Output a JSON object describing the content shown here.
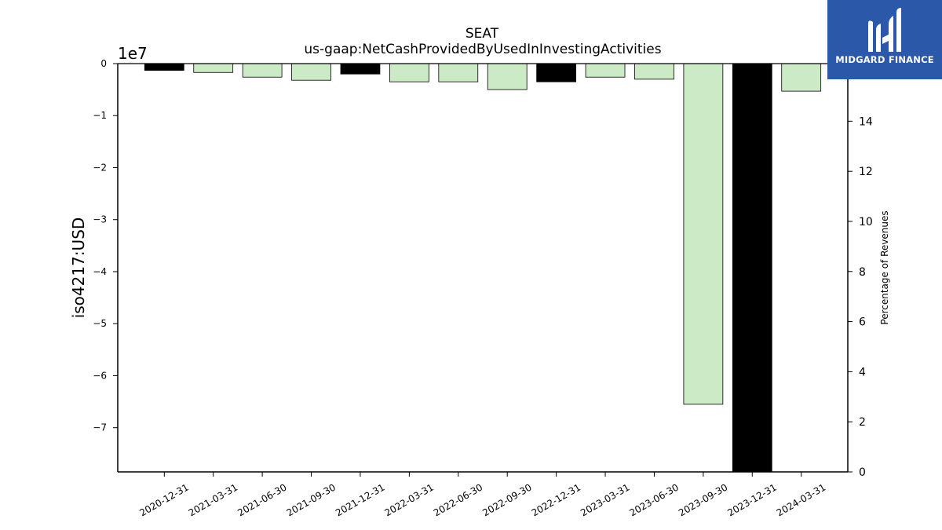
{
  "chart_data": {
    "type": "bar",
    "title": "SEAT",
    "subtitle": "us-gaap:NetCashProvidedByUsedInInvestingActivities",
    "ylabel": "iso4217:USD",
    "y_offset_label": "1e7",
    "y2label": "Percentage of Revenues",
    "categories": [
      "2020-12-31",
      "2021-03-31",
      "2021-06-30",
      "2021-09-30",
      "2021-12-31",
      "2022-03-31",
      "2022-06-30",
      "2022-09-30",
      "2022-12-31",
      "2023-03-31",
      "2023-06-30",
      "2023-09-30",
      "2023-12-31",
      "2024-03-31"
    ],
    "values": [
      -1300000,
      -1700000,
      -2600000,
      -3200000,
      -2000000,
      -3500000,
      -3500000,
      -5000000,
      -3500000,
      -2600000,
      -3000000,
      -65500000,
      -78500000,
      -5300000
    ],
    "bar_colors": [
      "#000000",
      "#cdeac6",
      "#cdeac6",
      "#cdeac6",
      "#000000",
      "#cdeac6",
      "#cdeac6",
      "#cdeac6",
      "#000000",
      "#cdeac6",
      "#cdeac6",
      "#cdeac6",
      "#000000",
      "#cdeac6"
    ],
    "ylim": [
      -78500000,
      0
    ],
    "yticks": [
      0,
      -1,
      -2,
      -3,
      -4,
      -5,
      -6,
      -7
    ],
    "ytick_labels": [
      "0",
      "−1",
      "−2",
      "−3",
      "−4",
      "−5",
      "−6",
      "−7"
    ],
    "y2lim": [
      0,
      16.3
    ],
    "y2ticks": [
      0,
      2,
      4,
      6,
      8,
      10,
      12,
      14
    ],
    "y2tick_labels": [
      "0",
      "2",
      "4",
      "6",
      "8",
      "10",
      "12",
      "14"
    ],
    "grid": false
  },
  "logo": {
    "text": "MIDGARD FINANCE"
  }
}
